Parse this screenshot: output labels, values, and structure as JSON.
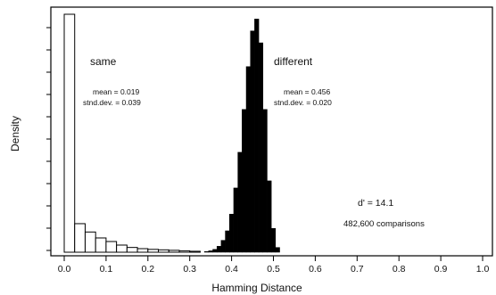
{
  "chart_data": {
    "type": "bar",
    "xlabel": "Hamming Distance",
    "ylabel": "Density",
    "xlim": [
      -0.03,
      1.02
    ],
    "ylim": [
      0,
      1.0
    ],
    "x_ticks": [
      "0.0",
      "0.1",
      "0.2",
      "0.3",
      "0.4",
      "0.5",
      "0.6",
      "0.7",
      "0.8",
      "0.9",
      "1.0"
    ],
    "y_ticks_visible": false,
    "bin_width": 0.025,
    "series": [
      {
        "name": "same",
        "fill": "#ffffff",
        "bins_left": [
          0.0,
          0.025,
          0.05,
          0.075,
          0.1,
          0.125,
          0.15,
          0.175,
          0.2,
          0.225,
          0.25,
          0.275,
          0.3
        ],
        "density": [
          1.0,
          0.12,
          0.085,
          0.06,
          0.045,
          0.03,
          0.02,
          0.015,
          0.012,
          0.01,
          0.008,
          0.006,
          0.004
        ]
      },
      {
        "name": "different",
        "fill": "#000000",
        "bins_left": [
          0.335,
          0.345,
          0.355,
          0.365,
          0.375,
          0.385,
          0.395,
          0.405,
          0.415,
          0.425,
          0.435,
          0.445,
          0.455,
          0.465,
          0.475,
          0.485,
          0.495,
          0.505
        ],
        "bin_width": 0.01,
        "density": [
          0.003,
          0.006,
          0.012,
          0.025,
          0.05,
          0.09,
          0.16,
          0.27,
          0.42,
          0.6,
          0.78,
          0.93,
          0.98,
          0.88,
          0.6,
          0.3,
          0.1,
          0.02
        ]
      }
    ],
    "annotations": {
      "same_label": "same",
      "same_mean": "mean = 0.019",
      "same_sd": "stnd.dev. = 0.039",
      "different_label": "different",
      "different_mean": "mean = 0.456",
      "different_sd": "stnd.dev. = 0.020",
      "dprime": "d' = 14.1",
      "comparisons": "482,600 comparisons"
    }
  }
}
